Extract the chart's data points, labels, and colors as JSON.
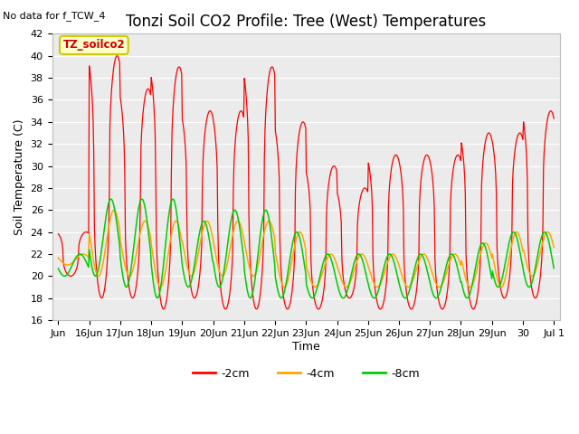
{
  "title": "Tonzi Soil CO2 Profile: Tree (West) Temperatures",
  "subtitle": "No data for f_TCW_4",
  "ylabel": "Soil Temperature (C)",
  "xlabel": "Time",
  "ylim": [
    16,
    42
  ],
  "yticks": [
    16,
    18,
    20,
    22,
    24,
    26,
    28,
    30,
    32,
    34,
    36,
    38,
    40,
    42
  ],
  "xtick_labels": [
    "Jun",
    "16Jun",
    "17Jun",
    "18Jun",
    "19Jun",
    "20Jun",
    "21Jun",
    "22Jun",
    "23Jun",
    "24Jun",
    "25Jun",
    "26Jun",
    "27Jun",
    "28Jun",
    "29Jun",
    "30",
    "Jul 1"
  ],
  "legend_labels": [
    "-2cm",
    "-4cm",
    "-8cm"
  ],
  "line_colors": [
    "#ff0000",
    "#ffa500",
    "#00cc00"
  ],
  "fig_facecolor": "#ffffff",
  "plot_facecolor": "#ebebeb",
  "box_color": "#ffffcc",
  "box_text": "TZ_soilco2",
  "box_text_color": "#cc0000",
  "box_edge_color": "#cccc00",
  "title_fontsize": 12,
  "axis_fontsize": 9,
  "tick_fontsize": 8,
  "grid_color": "#ffffff",
  "legend_linestyle": "-"
}
